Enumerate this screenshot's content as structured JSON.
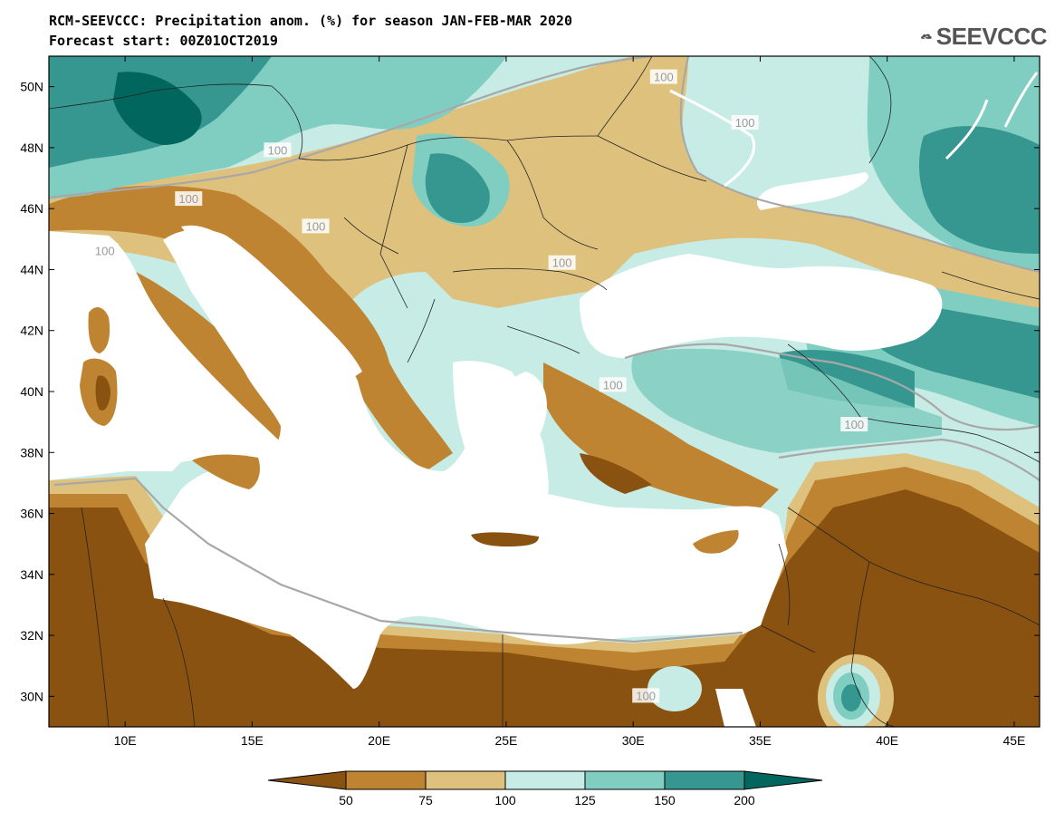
{
  "title_line1": "RCM-SEEVCCC: Precipitation anom. (%) for season JAN-FEB-MAR 2020",
  "title_line2": "Forecast start: 00Z01OCT2019",
  "logo_text": "SEEVCCC",
  "lat_ticks": [
    {
      "lat": 50,
      "label": "50N"
    },
    {
      "lat": 48,
      "label": "48N"
    },
    {
      "lat": 46,
      "label": "46N"
    },
    {
      "lat": 44,
      "label": "44N"
    },
    {
      "lat": 42,
      "label": "42N"
    },
    {
      "lat": 40,
      "label": "40N"
    },
    {
      "lat": 38,
      "label": "38N"
    },
    {
      "lat": 36,
      "label": "36N"
    },
    {
      "lat": 34,
      "label": "34N"
    },
    {
      "lat": 32,
      "label": "32N"
    },
    {
      "lat": 30,
      "label": "30N"
    }
  ],
  "lon_ticks": [
    {
      "lon": 10,
      "label": "10E"
    },
    {
      "lon": 15,
      "label": "15E"
    },
    {
      "lon": 20,
      "label": "20E"
    },
    {
      "lon": 25,
      "label": "25E"
    },
    {
      "lon": 30,
      "label": "30E"
    },
    {
      "lon": 35,
      "label": "35E"
    },
    {
      "lon": 40,
      "label": "40E"
    },
    {
      "lon": 45,
      "label": "45E"
    }
  ],
  "extent": {
    "lon_min": 7,
    "lon_max": 46,
    "lat_min": 29,
    "lat_max": 51
  },
  "contour_labels": [
    {
      "text": "100",
      "lon": 16.0,
      "lat": 47.9
    },
    {
      "text": "100",
      "lon": 12.5,
      "lat": 46.3
    },
    {
      "text": "100",
      "lon": 9.2,
      "lat": 44.6
    },
    {
      "text": "100",
      "lon": 17.5,
      "lat": 45.4
    },
    {
      "text": "100",
      "lon": 27.2,
      "lat": 44.2
    },
    {
      "text": "100",
      "lon": 31.2,
      "lat": 50.3
    },
    {
      "text": "100",
      "lon": 34.4,
      "lat": 48.8
    },
    {
      "text": "100",
      "lon": 29.2,
      "lat": 40.2
    },
    {
      "text": "100",
      "lon": 38.7,
      "lat": 38.9
    },
    {
      "text": "100",
      "lon": 30.5,
      "lat": 30.0
    }
  ],
  "colorbar": {
    "colors": [
      "#8a5211",
      "#bf8431",
      "#dfc17e",
      "#c7ebe5",
      "#80cdc1",
      "#35978f",
      "#01665e"
    ],
    "labels": [
      "50",
      "75",
      "100",
      "125",
      "150",
      "200"
    ]
  },
  "palette": {
    "dry_extreme": "#8a5211",
    "dry": "#bf8431",
    "slightly_dry": "#dfc17e",
    "slightly_wet": "#c7ebe5",
    "wet": "#80cdc1",
    "very_wet": "#35978f",
    "wet_extreme": "#01665e",
    "sea": "#ffffff",
    "contour": "#a0a0a0"
  }
}
